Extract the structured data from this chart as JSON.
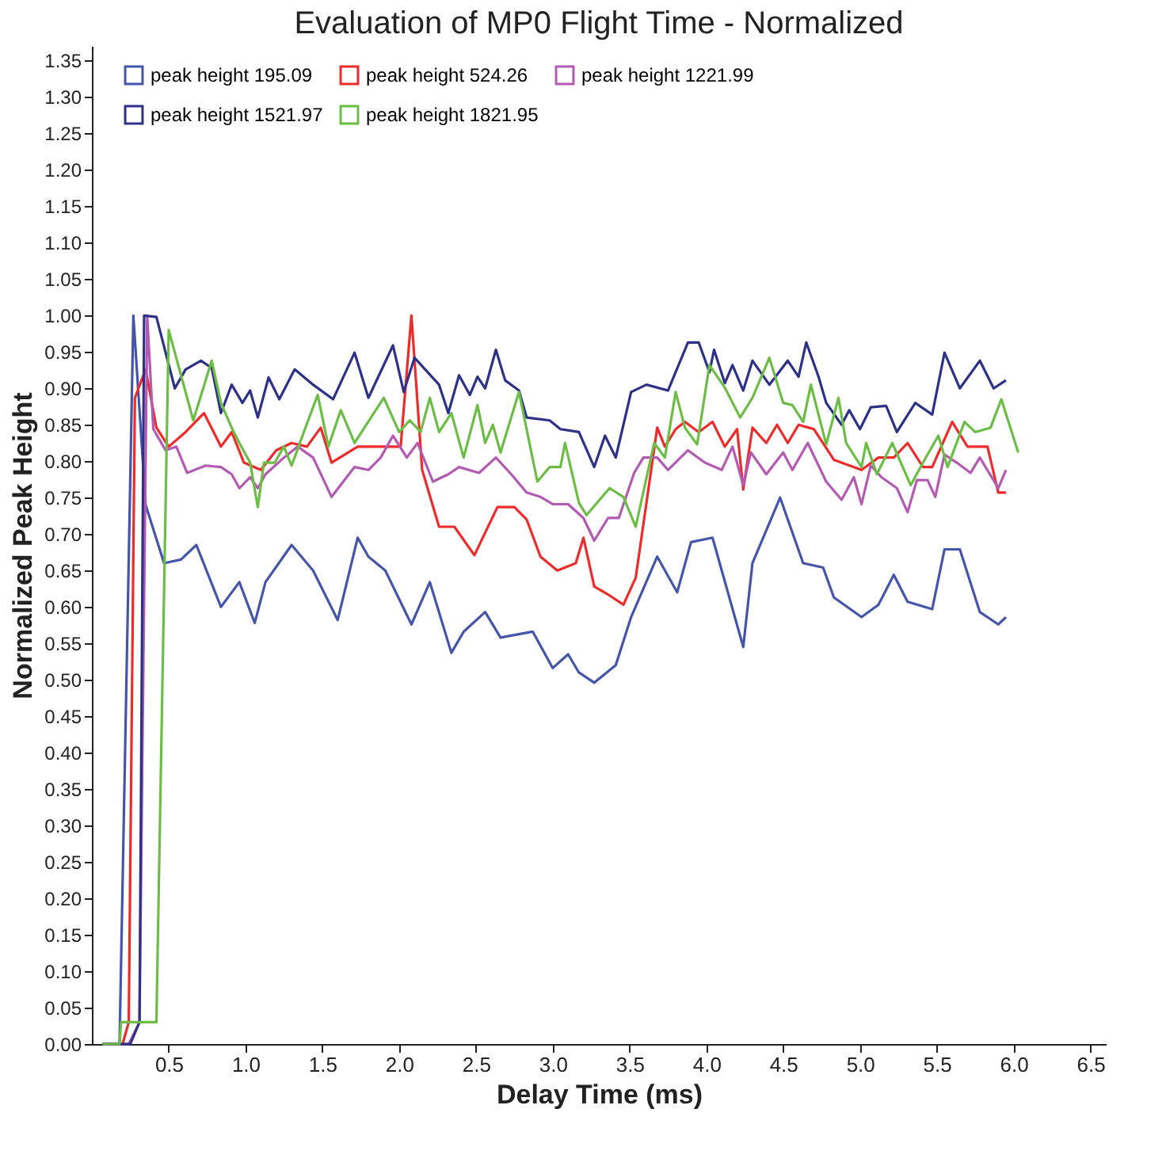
{
  "chart_data": {
    "type": "line",
    "title": "Evaluation of MP0 Flight Time - Normalized",
    "xlabel": "Delay Time (ms)",
    "ylabel": "Normalized Peak Height",
    "xlim": [
      0,
      6.6
    ],
    "ylim": [
      0,
      1.37
    ],
    "xticks": [
      {
        "value": 0.5,
        "label": "0.5"
      },
      {
        "value": 1,
        "label": "1.0"
      },
      {
        "value": 1.5,
        "label": "1.5"
      },
      {
        "value": 2,
        "label": "2.0"
      },
      {
        "value": 2.5,
        "label": "2.5"
      },
      {
        "value": 3,
        "label": "3.0"
      },
      {
        "value": 3.5,
        "label": "3.5"
      },
      {
        "value": 4,
        "label": "4.0"
      },
      {
        "value": 4.5,
        "label": "4.5"
      },
      {
        "value": 5,
        "label": "5.0"
      },
      {
        "value": 5.5,
        "label": "5.5"
      },
      {
        "value": 6,
        "label": "6.0"
      },
      {
        "value": 6.5,
        "label": "6.5"
      }
    ],
    "yticks": [
      {
        "value": 0,
        "label": "0.00"
      },
      {
        "value": 0.05,
        "label": "0.05"
      },
      {
        "value": 0.1,
        "label": "0.10"
      },
      {
        "value": 0.15,
        "label": "0.15"
      },
      {
        "value": 0.2,
        "label": "0.20"
      },
      {
        "value": 0.25,
        "label": "0.25"
      },
      {
        "value": 0.3,
        "label": "0.30"
      },
      {
        "value": 0.35,
        "label": "0.35"
      },
      {
        "value": 0.4,
        "label": "0.40"
      },
      {
        "value": 0.45,
        "label": "0.45"
      },
      {
        "value": 0.5,
        "label": "0.50"
      },
      {
        "value": 0.55,
        "label": "0.55"
      },
      {
        "value": 0.6,
        "label": "0.60"
      },
      {
        "value": 0.65,
        "label": "0.65"
      },
      {
        "value": 0.7,
        "label": "0.70"
      },
      {
        "value": 0.75,
        "label": "0.75"
      },
      {
        "value": 0.8,
        "label": "0.80"
      },
      {
        "value": 0.85,
        "label": "0.85"
      },
      {
        "value": 0.9,
        "label": "0.90"
      },
      {
        "value": 0.95,
        "label": "0.95"
      },
      {
        "value": 1,
        "label": "1.00"
      },
      {
        "value": 1.05,
        "label": "1.05"
      },
      {
        "value": 1.1,
        "label": "1.10"
      },
      {
        "value": 1.15,
        "label": "1.15"
      },
      {
        "value": 1.2,
        "label": "1.20"
      },
      {
        "value": 1.25,
        "label": "1.25"
      },
      {
        "value": 1.3,
        "label": "1.30"
      },
      {
        "value": 1.35,
        "label": "1.35"
      }
    ],
    "legend": "top",
    "grid": false,
    "series": [
      {
        "name": "peak height 195.09",
        "color": "#4455aa",
        "x": [
          0.07,
          0.18,
          0.27,
          0.35,
          0.47,
          0.58,
          0.68,
          0.84,
          0.96,
          1.06,
          1.13,
          1.3,
          1.44,
          1.6,
          1.73,
          1.8,
          1.91,
          2.08,
          2.2,
          2.34,
          2.42,
          2.56,
          2.66,
          2.87,
          3.0,
          3.1,
          3.17,
          3.27,
          3.41,
          3.51,
          3.68,
          3.81,
          3.9,
          4.04,
          4.24,
          4.3,
          4.48,
          4.63,
          4.76,
          4.83,
          5.01,
          5.12,
          5.22,
          5.31,
          5.47,
          5.55,
          5.65,
          5.78,
          5.9,
          5.95
        ],
        "values": [
          0,
          0,
          1.0,
          0.74,
          0.66,
          0.665,
          0.685,
          0.6,
          0.634,
          0.578,
          0.634,
          0.685,
          0.65,
          0.582,
          0.695,
          0.669,
          0.65,
          0.576,
          0.634,
          0.537,
          0.566,
          0.593,
          0.558,
          0.566,
          0.516,
          0.535,
          0.51,
          0.496,
          0.52,
          0.586,
          0.669,
          0.62,
          0.689,
          0.695,
          0.545,
          0.66,
          0.75,
          0.66,
          0.654,
          0.613,
          0.586,
          0.603,
          0.644,
          0.607,
          0.597,
          0.679,
          0.679,
          0.593,
          0.576,
          0.586
        ]
      },
      {
        "name": "peak height 524.26",
        "color": "#ee2b2b",
        "x": [
          0.07,
          0.2,
          0.24,
          0.28,
          0.35,
          0.42,
          0.5,
          0.61,
          0.73,
          0.84,
          0.91,
          0.99,
          1.1,
          1.2,
          1.3,
          1.4,
          1.49,
          1.56,
          1.73,
          1.86,
          2.01,
          2.08,
          2.15,
          2.26,
          2.36,
          2.49,
          2.64,
          2.75,
          2.83,
          2.92,
          3.03,
          3.15,
          3.2,
          3.27,
          3.36,
          3.46,
          3.54,
          3.68,
          3.73,
          3.8,
          3.86,
          3.95,
          4.04,
          4.12,
          4.2,
          4.24,
          4.3,
          4.39,
          4.46,
          4.53,
          4.6,
          4.7,
          4.83,
          5.01,
          5.12,
          5.22,
          5.31,
          5.41,
          5.47,
          5.6,
          5.7,
          5.83,
          5.9,
          5.95
        ],
        "values": [
          0,
          0,
          0.03,
          0.887,
          0.926,
          0.846,
          0.82,
          0.84,
          0.866,
          0.82,
          0.84,
          0.798,
          0.788,
          0.815,
          0.825,
          0.82,
          0.846,
          0.798,
          0.82,
          0.82,
          0.82,
          1.0,
          0.788,
          0.71,
          0.71,
          0.671,
          0.737,
          0.737,
          0.72,
          0.669,
          0.65,
          0.66,
          0.695,
          0.628,
          0.617,
          0.603,
          0.64,
          0.846,
          0.82,
          0.844,
          0.854,
          0.84,
          0.854,
          0.82,
          0.844,
          0.761,
          0.846,
          0.825,
          0.85,
          0.825,
          0.85,
          0.844,
          0.802,
          0.788,
          0.805,
          0.805,
          0.825,
          0.792,
          0.792,
          0.854,
          0.82,
          0.82,
          0.757,
          0.757
        ]
      },
      {
        "name": "peak height 1221.99",
        "color": "#b35ab3",
        "x": [
          0.07,
          0.24,
          0.31,
          0.36,
          0.4,
          0.48,
          0.55,
          0.62,
          0.74,
          0.84,
          0.91,
          0.96,
          1.03,
          1.08,
          1.13,
          1.25,
          1.34,
          1.44,
          1.56,
          1.71,
          1.8,
          1.88,
          1.96,
          2.05,
          2.12,
          2.22,
          2.32,
          2.39,
          2.52,
          2.63,
          2.73,
          2.83,
          2.92,
          3.0,
          3.1,
          3.2,
          3.27,
          3.36,
          3.43,
          3.53,
          3.59,
          3.68,
          3.75,
          3.88,
          3.99,
          4.1,
          4.17,
          4.24,
          4.29,
          4.39,
          4.5,
          4.56,
          4.66,
          4.78,
          4.88,
          4.96,
          5.01,
          5.07,
          5.14,
          5.24,
          5.31,
          5.37,
          5.44,
          5.49,
          5.55,
          5.63,
          5.72,
          5.78,
          5.9,
          5.95
        ],
        "values": [
          0,
          0,
          0.03,
          1.0,
          0.844,
          0.815,
          0.82,
          0.784,
          0.794,
          0.792,
          0.782,
          0.763,
          0.778,
          0.763,
          0.782,
          0.805,
          0.82,
          0.805,
          0.751,
          0.792,
          0.788,
          0.805,
          0.835,
          0.805,
          0.825,
          0.772,
          0.782,
          0.792,
          0.784,
          0.805,
          0.782,
          0.757,
          0.751,
          0.741,
          0.741,
          0.722,
          0.691,
          0.722,
          0.722,
          0.784,
          0.805,
          0.805,
          0.788,
          0.815,
          0.798,
          0.788,
          0.82,
          0.767,
          0.812,
          0.782,
          0.812,
          0.788,
          0.825,
          0.772,
          0.747,
          0.778,
          0.741,
          0.794,
          0.778,
          0.763,
          0.73,
          0.774,
          0.774,
          0.751,
          0.809,
          0.798,
          0.784,
          0.805,
          0.763,
          0.788
        ]
      },
      {
        "name": "peak height 1521.97",
        "color": "#2e3188",
        "x": [
          0.07,
          0.25,
          0.31,
          0.34,
          0.42,
          0.54,
          0.61,
          0.71,
          0.78,
          0.84,
          0.91,
          0.98,
          1.03,
          1.08,
          1.15,
          1.22,
          1.32,
          1.44,
          1.57,
          1.71,
          1.8,
          1.96,
          2.03,
          2.1,
          2.26,
          2.32,
          2.39,
          2.46,
          2.51,
          2.56,
          2.63,
          2.69,
          2.78,
          2.83,
          2.98,
          3.05,
          3.17,
          3.27,
          3.34,
          3.41,
          3.51,
          3.61,
          3.75,
          3.88,
          3.95,
          4.02,
          4.05,
          4.12,
          4.17,
          4.24,
          4.3,
          4.41,
          4.53,
          4.6,
          4.65,
          4.73,
          4.78,
          4.88,
          4.93,
          5.0,
          5.07,
          5.17,
          5.24,
          5.36,
          5.47,
          5.55,
          5.65,
          5.78,
          5.87,
          5.95
        ],
        "values": [
          0,
          0,
          0.03,
          1.0,
          0.998,
          0.9,
          0.926,
          0.938,
          0.928,
          0.866,
          0.905,
          0.88,
          0.897,
          0.86,
          0.915,
          0.885,
          0.926,
          0.905,
          0.885,
          0.949,
          0.887,
          0.959,
          0.895,
          0.942,
          0.905,
          0.866,
          0.918,
          0.891,
          0.916,
          0.9,
          0.953,
          0.911,
          0.897,
          0.86,
          0.856,
          0.844,
          0.84,
          0.792,
          0.835,
          0.805,
          0.895,
          0.905,
          0.897,
          0.963,
          0.963,
          0.922,
          0.953,
          0.907,
          0.932,
          0.897,
          0.938,
          0.905,
          0.938,
          0.916,
          0.963,
          0.916,
          0.88,
          0.85,
          0.87,
          0.844,
          0.874,
          0.876,
          0.84,
          0.88,
          0.864,
          0.949,
          0.9,
          0.938,
          0.9,
          0.911
        ]
      },
      {
        "name": "peak height 1821.95",
        "color": "#6cbd45",
        "x": [
          0.07,
          0.18,
          0.19,
          0.42,
          0.5,
          0.66,
          0.78,
          0.84,
          0.91,
          0.96,
          1.03,
          1.08,
          1.12,
          1.19,
          1.25,
          1.3,
          1.39,
          1.47,
          1.54,
          1.62,
          1.71,
          1.9,
          2.0,
          2.07,
          2.14,
          2.2,
          2.26,
          2.34,
          2.42,
          2.51,
          2.56,
          2.61,
          2.66,
          2.78,
          2.9,
          2.98,
          3.05,
          3.08,
          3.17,
          3.22,
          3.37,
          3.46,
          3.54,
          3.66,
          3.73,
          3.8,
          3.86,
          3.94,
          4.02,
          4.12,
          4.22,
          4.3,
          4.41,
          4.5,
          4.56,
          4.63,
          4.68,
          4.78,
          4.86,
          4.91,
          5.01,
          5.04,
          5.11,
          5.21,
          5.33,
          5.41,
          5.51,
          5.57,
          5.68,
          5.75,
          5.85,
          5.92,
          6.03
        ],
        "values": [
          0,
          0,
          0.03,
          0.03,
          0.98,
          0.856,
          0.938,
          0.88,
          0.846,
          0.825,
          0.798,
          0.737,
          0.798,
          0.798,
          0.82,
          0.794,
          0.846,
          0.891,
          0.82,
          0.87,
          0.825,
          0.887,
          0.84,
          0.856,
          0.84,
          0.887,
          0.84,
          0.866,
          0.805,
          0.877,
          0.825,
          0.85,
          0.812,
          0.895,
          0.772,
          0.792,
          0.792,
          0.825,
          0.743,
          0.726,
          0.763,
          0.751,
          0.71,
          0.825,
          0.805,
          0.895,
          0.846,
          0.823,
          0.932,
          0.901,
          0.86,
          0.887,
          0.942,
          0.88,
          0.877,
          0.854,
          0.905,
          0.823,
          0.887,
          0.825,
          0.792,
          0.825,
          0.782,
          0.825,
          0.767,
          0.798,
          0.835,
          0.792,
          0.854,
          0.84,
          0.846,
          0.885,
          0.812
        ]
      }
    ]
  }
}
